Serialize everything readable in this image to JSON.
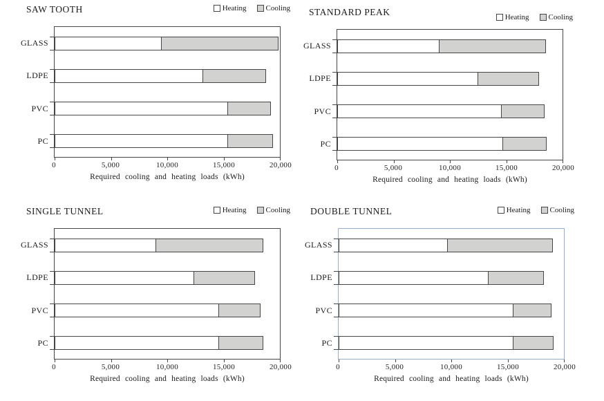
{
  "figure": {
    "legend": {
      "heating_label": "Heating",
      "cooling_label": "Cooling"
    },
    "colors": {
      "heating_fill": "#ffffff",
      "cooling_fill": "#d2d2d0",
      "frame": "#454545",
      "selected_frame": "#9aaccd",
      "text": "#1b1b1b"
    }
  },
  "chart_data": [
    {
      "type": "bar",
      "orientation": "horizontal",
      "stacked": true,
      "title": "SAW TOOTH",
      "categories": [
        "GLASS",
        "LDPE",
        "PVC",
        "PC"
      ],
      "series": [
        {
          "name": "Heating",
          "values": [
            9500,
            13200,
            15400,
            15400
          ]
        },
        {
          "name": "Cooling",
          "values": [
            10400,
            5600,
            3800,
            4000
          ]
        }
      ],
      "xlabel": "Required cooling and heating loads (kWh)",
      "ylabel": "",
      "xlim": [
        0,
        20000
      ],
      "xtick_labels": [
        "0",
        "5,000",
        "10,000",
        "15,000",
        "20,000"
      ],
      "grid": false,
      "legend_position": "top-right"
    },
    {
      "type": "bar",
      "orientation": "horizontal",
      "stacked": true,
      "title": "STANDARD PEAK",
      "categories": [
        "GLASS",
        "LDPE",
        "PVC",
        "PC"
      ],
      "series": [
        {
          "name": "Heating",
          "values": [
            9100,
            12500,
            14600,
            14700
          ]
        },
        {
          "name": "Cooling",
          "values": [
            9400,
            5400,
            3800,
            3900
          ]
        }
      ],
      "xlabel": "Required cooling and heating loads (kWh)",
      "ylabel": "",
      "xlim": [
        0,
        20000
      ],
      "xtick_labels": [
        "0",
        "5,000",
        "10,000",
        "15,000",
        "20,000"
      ],
      "grid": false,
      "legend_position": "top-right"
    },
    {
      "type": "bar",
      "orientation": "horizontal",
      "stacked": true,
      "title": "SINGLE TUNNEL",
      "categories": [
        "GLASS",
        "LDPE",
        "PVC",
        "PC"
      ],
      "series": [
        {
          "name": "Heating",
          "values": [
            9000,
            12400,
            14600,
            14600
          ]
        },
        {
          "name": "Cooling",
          "values": [
            9500,
            5400,
            3700,
            3900
          ]
        }
      ],
      "xlabel": "Required cooling and heating loads (kWh)",
      "ylabel": "",
      "xlim": [
        0,
        20000
      ],
      "xtick_labels": [
        "0",
        "5,000",
        "10,000",
        "15,000",
        "20,000"
      ],
      "grid": false,
      "legend_position": "top-right"
    },
    {
      "type": "bar",
      "orientation": "horizontal",
      "stacked": true,
      "title": "DOUBLE TUNNEL",
      "categories": [
        "GLASS",
        "LDPE",
        "PVC",
        "PC"
      ],
      "series": [
        {
          "name": "Heating",
          "values": [
            9700,
            13300,
            15500,
            15500
          ]
        },
        {
          "name": "Cooling",
          "values": [
            9300,
            4900,
            3400,
            3600
          ]
        }
      ],
      "xlabel": "Required cooling and heating loads (kWh)",
      "ylabel": "",
      "xlim": [
        0,
        20000
      ],
      "xtick_labels": [
        "0",
        "5,000",
        "10,000",
        "15,000",
        "20,000"
      ],
      "grid": false,
      "legend_position": "top-right",
      "highlighted_frame": true
    }
  ]
}
